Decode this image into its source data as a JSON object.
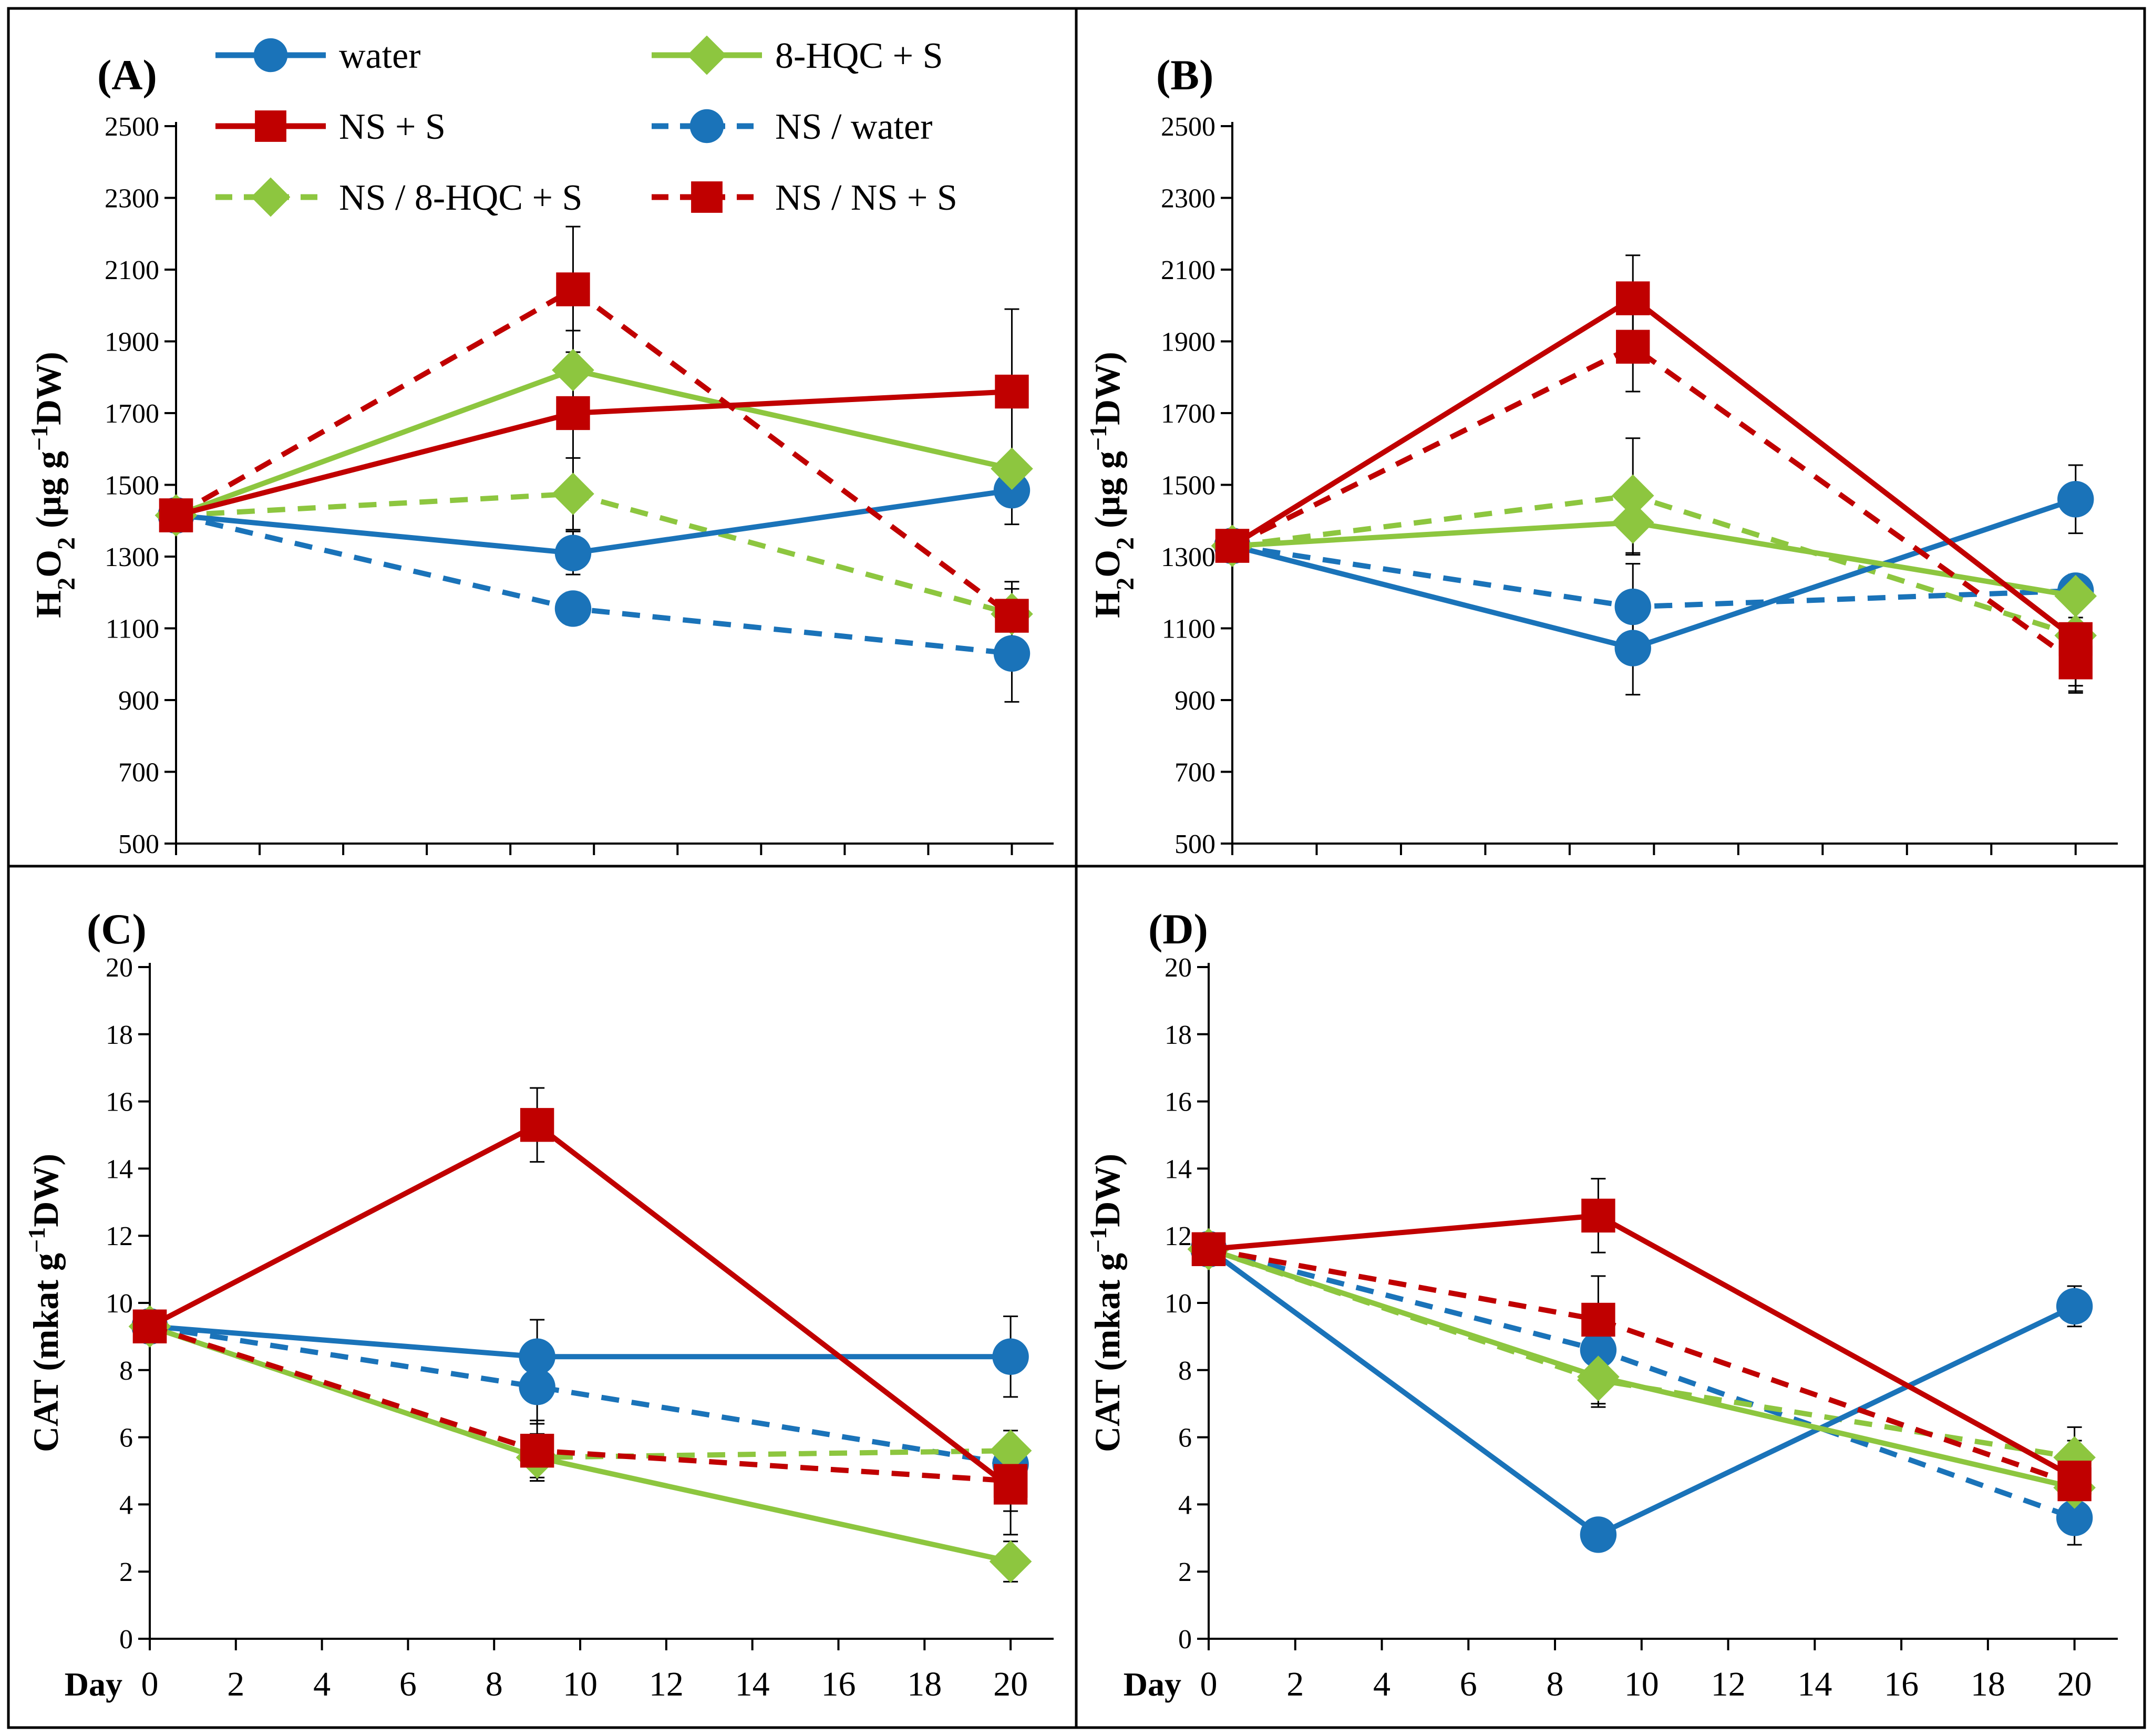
{
  "colors": {
    "blue": "#1a73b9",
    "green": "#8dc63f",
    "red": "#c00000"
  },
  "legend": [
    {
      "label": "water",
      "color": "blue",
      "marker": "circle",
      "dashed": false
    },
    {
      "label": "8-HQC + S",
      "color": "green",
      "marker": "diamond",
      "dashed": false
    },
    {
      "label": "NS + S",
      "color": "red",
      "marker": "square",
      "dashed": false
    },
    {
      "label": "NS / water",
      "color": "blue",
      "marker": "circle",
      "dashed": true
    },
    {
      "label": "NS / 8-HQC + S",
      "color": "green",
      "marker": "diamond",
      "dashed": true
    },
    {
      "label": "NS / NS + S",
      "color": "red",
      "marker": "square",
      "dashed": true
    }
  ],
  "x_axis_title": "Day",
  "chart_data": [
    {
      "id": "A",
      "panel_label": "(A)",
      "type": "line",
      "ylabel": "H2O2 (µg g−1DW)",
      "ylabel_parts": {
        "main": "H",
        "sub": "2",
        "main2": "O",
        "sub2": "2",
        "unit": " (µg g",
        "sup": "−1",
        "unit_end": "DW)"
      },
      "ylim": [
        500,
        2500
      ],
      "yticks": [
        500,
        700,
        900,
        1100,
        1300,
        1500,
        1700,
        1900,
        2100,
        2300,
        2500
      ],
      "xlim": [
        0,
        21
      ],
      "xticks_labeled": false,
      "series": [
        {
          "name": "water",
          "x": [
            0,
            9.5,
            20
          ],
          "y": [
            1415,
            1310,
            1485
          ],
          "err": [
            0,
            60,
            95
          ]
        },
        {
          "name": "8-HQC + S",
          "x": [
            0,
            9.5,
            20
          ],
          "y": [
            1415,
            1820,
            1545
          ],
          "err": [
            0,
            110,
            35
          ]
        },
        {
          "name": "NS + S",
          "x": [
            0,
            9.5,
            20
          ],
          "y": [
            1415,
            1700,
            1760
          ],
          "err": [
            0,
            230,
            230
          ]
        },
        {
          "name": "NS / water",
          "x": [
            0,
            9.5,
            20
          ],
          "y": [
            1415,
            1155,
            1030
          ],
          "err": [
            0,
            45,
            135
          ]
        },
        {
          "name": "NS / 8-HQC + S",
          "x": [
            0,
            9.5,
            20
          ],
          "y": [
            1415,
            1475,
            1140
          ],
          "err": [
            0,
            100,
            70
          ]
        },
        {
          "name": "NS / NS + S",
          "x": [
            0,
            9.5,
            20
          ],
          "y": [
            1415,
            2045,
            1135
          ],
          "err": [
            0,
            175,
            95
          ]
        }
      ]
    },
    {
      "id": "B",
      "panel_label": "(B)",
      "type": "line",
      "ylabel": "H2O2 (µg g−1DW)",
      "ylabel_parts": {
        "main": "H",
        "sub": "2",
        "main2": "O",
        "sub2": "2",
        "unit": " (µg g",
        "sup": "−1",
        "unit_end": "DW)"
      },
      "ylim": [
        500,
        2500
      ],
      "yticks": [
        500,
        700,
        900,
        1100,
        1300,
        1500,
        1700,
        1900,
        2100,
        2300,
        2500
      ],
      "xlim": [
        0,
        21
      ],
      "xticks_labeled": false,
      "series": [
        {
          "name": "water",
          "x": [
            0,
            9.5,
            20
          ],
          "y": [
            1330,
            1045,
            1460
          ],
          "err": [
            0,
            130,
            95
          ]
        },
        {
          "name": "8-HQC + S",
          "x": [
            0,
            9.5,
            20
          ],
          "y": [
            1330,
            1395,
            1190
          ],
          "err": [
            0,
            90,
            60
          ]
        },
        {
          "name": "NS + S",
          "x": [
            0,
            9.5,
            20
          ],
          "y": [
            1330,
            2020,
            1070
          ],
          "err": [
            0,
            120,
            150
          ]
        },
        {
          "name": "NS / water",
          "x": [
            0,
            9.5,
            20
          ],
          "y": [
            1330,
            1160,
            1205
          ],
          "err": [
            0,
            120,
            40
          ]
        },
        {
          "name": "NS / 8-HQC + S",
          "x": [
            0,
            9.5,
            20
          ],
          "y": [
            1330,
            1470,
            1080
          ],
          "err": [
            0,
            160,
            140
          ]
        },
        {
          "name": "NS / NS + S",
          "x": [
            0,
            9.5,
            20
          ],
          "y": [
            1330,
            1885,
            1005
          ],
          "err": [
            0,
            125,
            80
          ]
        }
      ]
    },
    {
      "id": "C",
      "panel_label": "(C)",
      "type": "line",
      "ylabel": "CAT (mkat g−1DW)",
      "ylabel_parts": {
        "main": "CAT",
        "sub": "",
        "main2": "",
        "sub2": "",
        "unit": " (mkat g",
        "sup": "−1",
        "unit_end": "DW)"
      },
      "ylim": [
        0,
        20
      ],
      "yticks": [
        0,
        2,
        4,
        6,
        8,
        10,
        12,
        14,
        16,
        18,
        20
      ],
      "xlim": [
        0,
        21
      ],
      "xticks": [
        0,
        2,
        4,
        6,
        8,
        10,
        12,
        14,
        16,
        18,
        20
      ],
      "xticks_labeled": true,
      "series": [
        {
          "name": "water",
          "x": [
            0,
            9,
            20
          ],
          "y": [
            9.3,
            8.4,
            8.4
          ],
          "err": [
            0,
            1.1,
            1.2
          ]
        },
        {
          "name": "8-HQC + S",
          "x": [
            0,
            9,
            20
          ],
          "y": [
            9.3,
            5.4,
            2.3
          ],
          "err": [
            0,
            0.6,
            0.6
          ]
        },
        {
          "name": "NS + S",
          "x": [
            0,
            9,
            20
          ],
          "y": [
            9.3,
            15.3,
            4.5
          ],
          "err": [
            0,
            1.1,
            1.4
          ]
        },
        {
          "name": "NS / water",
          "x": [
            0,
            9,
            20
          ],
          "y": [
            9.3,
            7.5,
            5.2
          ],
          "err": [
            0,
            1.1,
            0.6
          ]
        },
        {
          "name": "NS / 8-HQC + S",
          "x": [
            0,
            9,
            20
          ],
          "y": [
            9.3,
            5.4,
            5.6
          ],
          "err": [
            0,
            0.7,
            0.6
          ]
        },
        {
          "name": "NS / NS + S",
          "x": [
            0,
            9,
            20
          ],
          "y": [
            9.3,
            5.6,
            4.7
          ],
          "err": [
            0,
            0.9,
            0.9
          ]
        }
      ]
    },
    {
      "id": "D",
      "panel_label": "(D)",
      "type": "line",
      "ylabel": "CAT (mkat g−1DW)",
      "ylabel_parts": {
        "main": "CAT",
        "sub": "",
        "main2": "",
        "sub2": "",
        "unit": " (mkat g",
        "sup": "−1",
        "unit_end": "DW)"
      },
      "ylim": [
        0,
        20
      ],
      "yticks": [
        0,
        2,
        4,
        6,
        8,
        10,
        12,
        14,
        16,
        18,
        20
      ],
      "xlim": [
        0,
        21
      ],
      "xticks": [
        0,
        2,
        4,
        6,
        8,
        10,
        12,
        14,
        16,
        18,
        20
      ],
      "xticks_labeled": true,
      "series": [
        {
          "name": "water",
          "x": [
            0,
            9,
            20
          ],
          "y": [
            11.6,
            3.1,
            9.9
          ],
          "err": [
            0,
            0.3,
            0.6
          ]
        },
        {
          "name": "8-HQC + S",
          "x": [
            0,
            9,
            20
          ],
          "y": [
            11.6,
            7.8,
            4.5
          ],
          "err": [
            0,
            0.8,
            0.7
          ]
        },
        {
          "name": "NS + S",
          "x": [
            0,
            9,
            20
          ],
          "y": [
            11.6,
            12.6,
            4.8
          ],
          "err": [
            0,
            1.1,
            1.1
          ]
        },
        {
          "name": "NS / water",
          "x": [
            0,
            9,
            20
          ],
          "y": [
            11.6,
            8.6,
            3.6
          ],
          "err": [
            0,
            1.0,
            0.8
          ]
        },
        {
          "name": "NS / 8-HQC + S",
          "x": [
            0,
            9,
            20
          ],
          "y": [
            11.6,
            7.7,
            5.4
          ],
          "err": [
            0,
            0.8,
            0.9
          ]
        },
        {
          "name": "NS / NS + S",
          "x": [
            0,
            9,
            20
          ],
          "y": [
            11.6,
            9.5,
            4.6
          ],
          "err": [
            0,
            1.3,
            1.0
          ]
        }
      ]
    }
  ]
}
